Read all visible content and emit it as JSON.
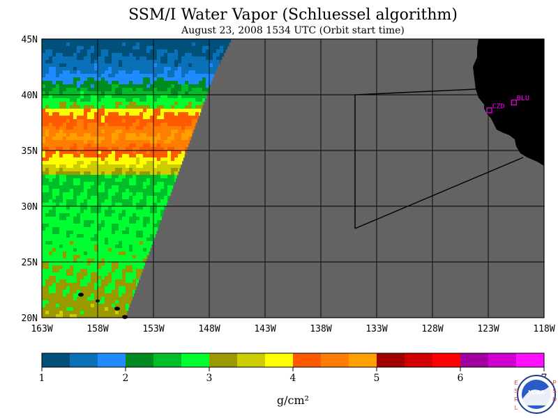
{
  "title": "SSM/I Water Vapor (Schluessel algorithm)",
  "subtitle": "August 23, 2008  1534 UTC  (Orbit start time)",
  "lat_labels": [
    "45N",
    "40N",
    "35N",
    "30N",
    "25N",
    "20N"
  ],
  "lon_labels": [
    "163W",
    "158W",
    "153W",
    "148W",
    "143W",
    "138W",
    "133W",
    "128W",
    "123W",
    "118W"
  ],
  "stations": [
    {
      "label": "BLU",
      "lon": -120.7,
      "lat": 39.3
    },
    {
      "label": "CZD",
      "lon": -122.9,
      "lat": 38.6
    }
  ],
  "colorbar": {
    "ticks": [
      "1",
      "2",
      "3",
      "4",
      "5",
      "6",
      "7"
    ],
    "unit": "g/cm²",
    "colors": [
      "#00507a",
      "#0a70b8",
      "#1e8cff",
      "#008a20",
      "#00be28",
      "#00ff30",
      "#9a9a00",
      "#cccc00",
      "#ffff00",
      "#ff5a00",
      "#ff7d00",
      "#ffa000",
      "#a00000",
      "#d00000",
      "#ff0000",
      "#a000a0",
      "#d000d0",
      "#ff10ff"
    ]
  },
  "logo": {
    "left_text": "ESRL",
    "right_text": "PSD",
    "center_text": "NOAA"
  },
  "ocean_color": "#636363",
  "land_color": "#000000",
  "station_color": "#ff00ff"
}
